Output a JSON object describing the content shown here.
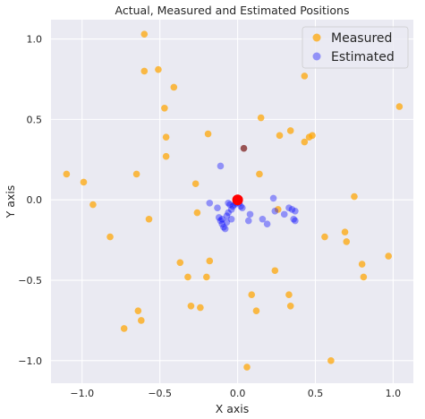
{
  "chart_data": {
    "type": "scatter",
    "title": "Actual, Measured and Estimated Positions",
    "xlabel": "X axis",
    "ylabel": "Y axis",
    "xlim": [
      -1.2,
      1.13
    ],
    "ylim": [
      -1.14,
      1.12
    ],
    "xticks": [
      -1.0,
      -0.5,
      0.0,
      0.5,
      1.0
    ],
    "xtick_labels": [
      "−1.0",
      "−0.5",
      "0.0",
      "0.5",
      "1.0"
    ],
    "yticks": [
      -1.0,
      -0.5,
      0.0,
      0.5,
      1.0
    ],
    "ytick_labels": [
      "−1.0",
      "−0.5",
      "0.0",
      "0.5",
      "1.0"
    ],
    "grid": true,
    "legend_position": "top-right",
    "colors": {
      "plot_background": "#eaeaf2",
      "grid": "#ffffff",
      "measured": "#ffa500",
      "estimated": "#0000ff",
      "actual": "#ff0000",
      "overlap": "#8b3a3a"
    },
    "series": [
      {
        "name": "Measured",
        "color": "#ffa500",
        "points": [
          [
            -0.6,
            1.03
          ],
          [
            -0.6,
            0.8
          ],
          [
            -0.51,
            0.81
          ],
          [
            -0.41,
            0.7
          ],
          [
            -0.47,
            0.57
          ],
          [
            -0.46,
            0.39
          ],
          [
            -0.19,
            0.41
          ],
          [
            -0.46,
            0.27
          ],
          [
            -0.65,
            0.16
          ],
          [
            -1.1,
            0.16
          ],
          [
            -0.99,
            0.11
          ],
          [
            -0.93,
            -0.03
          ],
          [
            -0.27,
            0.1
          ],
          [
            -0.57,
            -0.12
          ],
          [
            -0.82,
            -0.23
          ],
          [
            -0.26,
            -0.08
          ],
          [
            -0.37,
            -0.39
          ],
          [
            -0.32,
            -0.48
          ],
          [
            -0.18,
            -0.38
          ],
          [
            -0.2,
            -0.48
          ],
          [
            -0.3,
            -0.66
          ],
          [
            -0.24,
            -0.67
          ],
          [
            -0.64,
            -0.69
          ],
          [
            -0.62,
            -0.75
          ],
          [
            -0.73,
            -0.8
          ],
          [
            0.06,
            -1.04
          ],
          [
            0.15,
            0.51
          ],
          [
            0.34,
            0.43
          ],
          [
            0.27,
            0.4
          ],
          [
            0.46,
            0.39
          ],
          [
            0.48,
            0.4
          ],
          [
            0.43,
            0.36
          ],
          [
            0.43,
            0.77
          ],
          [
            0.14,
            0.16
          ],
          [
            0.26,
            -0.06
          ],
          [
            0.24,
            -0.44
          ],
          [
            0.09,
            -0.59
          ],
          [
            0.12,
            -0.69
          ],
          [
            0.33,
            -0.59
          ],
          [
            0.34,
            -0.66
          ],
          [
            0.56,
            -0.23
          ],
          [
            0.69,
            -0.2
          ],
          [
            0.7,
            -0.26
          ],
          [
            0.75,
            0.02
          ],
          [
            0.8,
            -0.4
          ],
          [
            0.81,
            -0.48
          ],
          [
            0.97,
            -0.35
          ],
          [
            1.04,
            0.58
          ],
          [
            0.6,
            -1.0
          ]
        ]
      },
      {
        "name": "Estimated",
        "color": "#0000ff",
        "points": [
          [
            -0.11,
            0.21
          ],
          [
            -0.18,
            -0.02
          ],
          [
            -0.13,
            -0.05
          ],
          [
            -0.12,
            -0.11
          ],
          [
            -0.11,
            -0.13
          ],
          [
            -0.1,
            -0.15
          ],
          [
            -0.09,
            -0.17
          ],
          [
            -0.08,
            -0.18
          ],
          [
            -0.1,
            -0.12
          ],
          [
            -0.07,
            -0.1
          ],
          [
            -0.06,
            -0.08
          ],
          [
            -0.05,
            -0.03
          ],
          [
            -0.04,
            -0.06
          ],
          [
            -0.03,
            -0.04
          ],
          [
            -0.02,
            -0.03
          ],
          [
            -0.01,
            -0.02
          ],
          [
            0.0,
            -0.01
          ],
          [
            0.01,
            -0.02
          ],
          [
            0.02,
            -0.04
          ],
          [
            0.03,
            -0.05
          ],
          [
            -0.04,
            -0.12
          ],
          [
            -0.07,
            -0.14
          ],
          [
            -0.06,
            -0.02
          ],
          [
            0.08,
            -0.09
          ],
          [
            0.07,
            -0.13
          ],
          [
            0.16,
            -0.12
          ],
          [
            0.19,
            -0.15
          ],
          [
            0.23,
            0.01
          ],
          [
            0.24,
            -0.07
          ],
          [
            0.3,
            -0.09
          ],
          [
            0.33,
            -0.05
          ],
          [
            0.37,
            -0.07
          ],
          [
            0.37,
            -0.13
          ],
          [
            0.36,
            -0.12
          ],
          [
            0.35,
            -0.06
          ]
        ]
      }
    ],
    "actual_point": [
      0.0,
      0.0
    ],
    "overlap_point": [
      0.04,
      0.32
    ]
  }
}
